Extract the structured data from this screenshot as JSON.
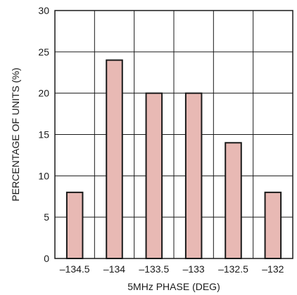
{
  "chart_data": {
    "type": "bar",
    "categories": [
      "–134.5",
      "–134",
      "–133.5",
      "–133",
      "–132.5",
      "–132"
    ],
    "values": [
      8,
      24,
      20,
      20,
      14,
      8
    ],
    "xlabel": "5MHz PHASE (DEG)",
    "ylabel": "PERCENTAGE OF UNITS (%)",
    "ylim": [
      0,
      30
    ],
    "yticks": [
      0,
      5,
      10,
      15,
      20,
      25,
      30
    ],
    "grid": true,
    "bar_color": "#e8b9b4"
  }
}
